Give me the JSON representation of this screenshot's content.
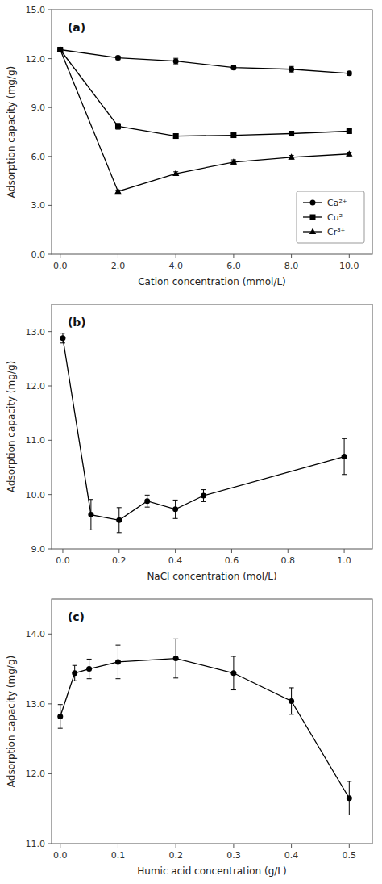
{
  "chart_data": [
    {
      "type": "line",
      "title": "(a)",
      "x_label": "Cation concentration (mmol/L)",
      "y_label": "Adsorption capacity (mg/g)",
      "xlim": [
        -0.3,
        10.8
      ],
      "ylim": [
        0.0,
        15.0
      ],
      "xticks": [
        {
          "value": 0.0,
          "label": "0.0"
        },
        {
          "value": 2.0,
          "label": "2.0"
        },
        {
          "value": 4.0,
          "label": "4.0"
        },
        {
          "value": 6.0,
          "label": "6.0"
        },
        {
          "value": 8.0,
          "label": "8.0"
        },
        {
          "value": 10.0,
          "label": "10.0"
        }
      ],
      "yticks": [
        {
          "value": 0.0,
          "label": "0.0"
        },
        {
          "value": 3.0,
          "label": "3.0"
        },
        {
          "value": 6.0,
          "label": "6.0"
        },
        {
          "value": 9.0,
          "label": "9.0"
        },
        {
          "value": 12.0,
          "label": "12.0"
        },
        {
          "value": 15.0,
          "label": "15.0"
        }
      ],
      "grid": false,
      "legend": "lower right",
      "series": [
        {
          "name": "Ca²⁺",
          "marker": "circle",
          "color": "#000000",
          "x": [
            0.0,
            2.0,
            4.0,
            6.0,
            8.0,
            10.0
          ],
          "values": [
            12.55,
            12.05,
            11.85,
            11.45,
            11.35,
            11.1
          ],
          "errors": [
            0.13,
            0.11,
            0.17,
            0.11,
            0.17,
            0.11
          ]
        },
        {
          "name": "Cu²⁻",
          "marker": "square",
          "color": "#000000",
          "x": [
            0.0,
            2.0,
            4.0,
            6.0,
            8.0,
            10.0
          ],
          "values": [
            12.55,
            7.85,
            7.25,
            7.3,
            7.4,
            7.55
          ],
          "errors": [
            0.13,
            0.18,
            0.13,
            0.11,
            0.14,
            0.11
          ]
        },
        {
          "name": "Cr³⁺",
          "marker": "triangle",
          "color": "#000000",
          "x": [
            0.0,
            2.0,
            4.0,
            6.0,
            8.0,
            10.0
          ],
          "values": [
            12.55,
            3.85,
            4.95,
            5.65,
            5.95,
            6.15
          ],
          "errors": [
            0.13,
            0.09,
            0.11,
            0.14,
            0.11,
            0.11
          ]
        }
      ]
    },
    {
      "type": "line",
      "title": "(b)",
      "x_label": "NaCl concentration (mol/L)",
      "y_label": "Adsorption capacity (mg/g)",
      "xlim": [
        -0.04,
        1.1
      ],
      "ylim": [
        9.0,
        13.5
      ],
      "xticks": [
        {
          "value": 0.0,
          "label": "0.0"
        },
        {
          "value": 0.2,
          "label": "0.2"
        },
        {
          "value": 0.4,
          "label": "0.4"
        },
        {
          "value": 0.6,
          "label": "0.6"
        },
        {
          "value": 0.8,
          "label": "0.8"
        },
        {
          "value": 1.0,
          "label": "1.0"
        }
      ],
      "yticks": [
        {
          "value": 9.0,
          "label": "9.0"
        },
        {
          "value": 10.0,
          "label": "10.0"
        },
        {
          "value": 11.0,
          "label": "11.0"
        },
        {
          "value": 12.0,
          "label": "12.0"
        },
        {
          "value": 13.0,
          "label": "13.0"
        }
      ],
      "grid": false,
      "series": [
        {
          "marker": "circle",
          "color": "#000000",
          "x": [
            0.0,
            0.1,
            0.2,
            0.3,
            0.4,
            0.5,
            1.0
          ],
          "values": [
            12.88,
            9.63,
            9.53,
            9.88,
            9.73,
            9.98,
            10.7
          ],
          "errors": [
            0.09,
            0.28,
            0.23,
            0.11,
            0.17,
            0.11,
            0.33
          ]
        }
      ]
    },
    {
      "type": "line",
      "title": "(c)",
      "x_label": "Humic acid concentration (g/L)",
      "y_label": "Adsorption capacity (mg/g)",
      "xlim": [
        -0.015,
        0.54
      ],
      "ylim": [
        11.0,
        14.5
      ],
      "xticks": [
        {
          "value": 0.0,
          "label": "0.0"
        },
        {
          "value": 0.1,
          "label": "0.1"
        },
        {
          "value": 0.2,
          "label": "0.2"
        },
        {
          "value": 0.3,
          "label": "0.3"
        },
        {
          "value": 0.4,
          "label": "0.4"
        },
        {
          "value": 0.5,
          "label": "0.5"
        }
      ],
      "yticks": [
        {
          "value": 11.0,
          "label": "11.0"
        },
        {
          "value": 12.0,
          "label": "12.0"
        },
        {
          "value": 13.0,
          "label": "13.0"
        },
        {
          "value": 14.0,
          "label": "14.0"
        }
      ],
      "grid": false,
      "series": [
        {
          "marker": "circle",
          "color": "#000000",
          "x": [
            0.0,
            0.025,
            0.05,
            0.1,
            0.2,
            0.3,
            0.4,
            0.5
          ],
          "values": [
            12.82,
            13.44,
            13.5,
            13.6,
            13.65,
            13.44,
            13.04,
            11.65
          ],
          "errors": [
            0.17,
            0.11,
            0.14,
            0.24,
            0.28,
            0.24,
            0.19,
            0.24
          ]
        }
      ]
    }
  ]
}
